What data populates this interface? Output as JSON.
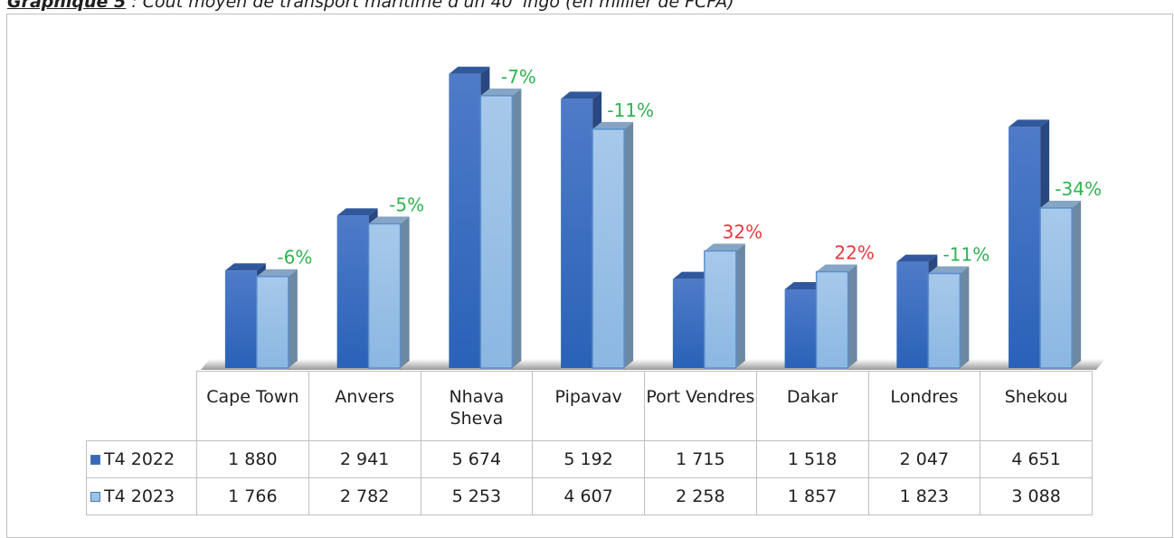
{
  "chart_data": {
    "type": "bar3d",
    "figure_label": "Graphique 5",
    "title": ": Coût moyen de transport maritime d'un 40' ingo (en millier de FCFA)",
    "categories": [
      "Cape Town",
      "Anvers",
      "Nhava Sheva",
      "Pipavav",
      "Port Vendres",
      "Dakar",
      "Londres",
      "Shekou"
    ],
    "series": [
      {
        "name": "T4 2022",
        "color": "#3a67b8",
        "values": [
          1880,
          2941,
          5674,
          5192,
          1715,
          1518,
          2047,
          4651
        ],
        "value_labels": [
          "1 880",
          "2 941",
          "5 674",
          "5 192",
          "1 715",
          "1 518",
          "2 047",
          "4 651"
        ]
      },
      {
        "name": "T4 2023",
        "color": "#9cc2e6",
        "values": [
          1766,
          2782,
          5253,
          4607,
          2258,
          1857,
          1823,
          3088
        ],
        "value_labels": [
          "1 766",
          "2 782",
          "5 253",
          "4 607",
          "2 258",
          "1 857",
          "1 823",
          "3 088"
        ]
      }
    ],
    "annotations": [
      {
        "text": "-6%",
        "color": "#2fb350"
      },
      {
        "text": "-5%",
        "color": "#2fb350"
      },
      {
        "text": "-7%",
        "color": "#2fb350"
      },
      {
        "text": "-11%",
        "color": "#2fb350"
      },
      {
        "text": "32%",
        "color": "#e8383d"
      },
      {
        "text": "22%",
        "color": "#e8383d"
      },
      {
        "text": "-11%",
        "color": "#2fb350"
      },
      {
        "text": "-34%",
        "color": "#2fb350"
      }
    ],
    "ylim": [
      0,
      6000
    ]
  }
}
